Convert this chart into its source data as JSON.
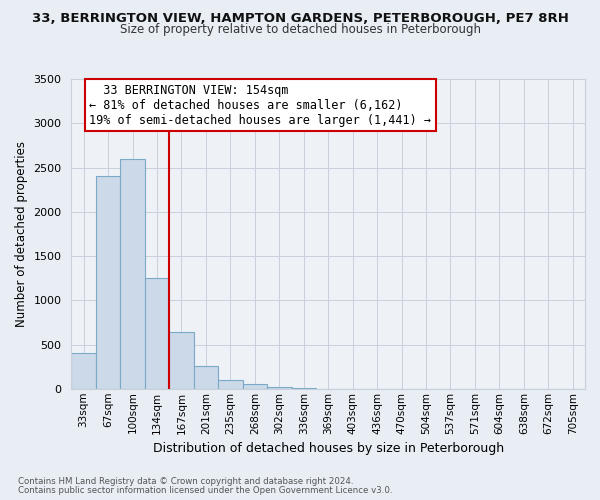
{
  "title_line1": "33, BERRINGTON VIEW, HAMPTON GARDENS, PETERBOROUGH, PE7 8RH",
  "title_line2": "Size of property relative to detached houses in Peterborough",
  "xlabel": "Distribution of detached houses by size in Peterborough",
  "ylabel": "Number of detached properties",
  "bar_labels": [
    "33sqm",
    "67sqm",
    "100sqm",
    "134sqm",
    "167sqm",
    "201sqm",
    "235sqm",
    "268sqm",
    "302sqm",
    "336sqm",
    "369sqm",
    "403sqm",
    "436sqm",
    "470sqm",
    "504sqm",
    "537sqm",
    "571sqm",
    "604sqm",
    "638sqm",
    "672sqm",
    "705sqm"
  ],
  "bar_values": [
    400,
    2400,
    2600,
    1250,
    640,
    260,
    100,
    50,
    25,
    10,
    0,
    0,
    0,
    0,
    0,
    0,
    0,
    0,
    0,
    0,
    0
  ],
  "bar_color": "#ccd9e8",
  "bar_edge_color": "#7aaac8",
  "marker_color": "#cc0000",
  "ylim": [
    0,
    3500
  ],
  "yticks": [
    0,
    500,
    1000,
    1500,
    2000,
    2500,
    3000,
    3500
  ],
  "annotation_title": "33 BERRINGTON VIEW: 154sqm",
  "annotation_line1": "← 81% of detached houses are smaller (6,162)",
  "annotation_line2": "19% of semi-detached houses are larger (1,441) →",
  "annotation_box_color": "#ffffff",
  "annotation_box_edge": "#cc0000",
  "footnote_line1": "Contains HM Land Registry data © Crown copyright and database right 2024.",
  "footnote_line2": "Contains public sector information licensed under the Open Government Licence v3.0.",
  "background_color": "#e8eef4",
  "plot_bg_color": "#eef2f7",
  "grid_color": "#c8d0dc"
}
